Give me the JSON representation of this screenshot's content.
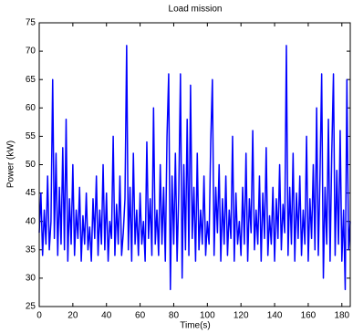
{
  "chart_data": {
    "type": "line",
    "title": "Load mission",
    "xlabel": "Time(s)",
    "ylabel": "Power (kW)",
    "x": [
      0,
      1,
      2,
      3,
      4,
      5,
      6,
      7,
      8,
      9,
      10,
      11,
      12,
      13,
      14,
      15,
      16,
      17,
      18,
      19,
      20,
      21,
      22,
      23,
      24,
      25,
      26,
      27,
      28,
      29,
      30,
      31,
      32,
      33,
      34,
      35,
      36,
      37,
      38,
      39,
      40,
      41,
      42,
      43,
      44,
      45,
      46,
      47,
      48,
      49,
      50,
      51,
      52,
      53,
      54,
      55,
      56,
      57,
      58,
      59,
      60,
      61,
      62,
      63,
      64,
      65,
      66,
      67,
      68,
      69,
      70,
      71,
      72,
      73,
      74,
      75,
      76,
      77,
      78,
      79,
      80,
      81,
      82,
      83,
      84,
      85,
      86,
      87,
      88,
      89,
      90,
      91,
      92,
      93,
      94,
      95,
      96,
      97,
      98,
      99,
      100,
      101,
      102,
      103,
      104,
      105,
      106,
      107,
      108,
      109,
      110,
      111,
      112,
      113,
      114,
      115,
      116,
      117,
      118,
      119,
      120,
      121,
      122,
      123,
      124,
      125,
      126,
      127,
      128,
      129,
      130,
      131,
      132,
      133,
      134,
      135,
      136,
      137,
      138,
      139,
      140,
      141,
      142,
      143,
      144,
      145,
      146,
      147,
      148,
      149,
      150,
      151,
      152,
      153,
      154,
      155,
      156,
      157,
      158,
      159,
      160,
      161,
      162,
      163,
      164,
      165,
      166,
      167,
      168,
      169,
      170,
      171,
      172,
      173,
      174,
      175,
      176,
      177,
      178,
      179,
      180,
      181,
      182,
      183,
      184,
      185
    ],
    "series": [
      {
        "name": "Power",
        "color": "#0000ff",
        "values": [
          38,
          45,
          34,
          42,
          36,
          48,
          35,
          40,
          65,
          37,
          52,
          34,
          46,
          36,
          53,
          35,
          58,
          33,
          44,
          36,
          50,
          34,
          42,
          37,
          46,
          33,
          41,
          36,
          45,
          35,
          39,
          33,
          44,
          37,
          48,
          34,
          42,
          36,
          50,
          35,
          45,
          33,
          40,
          37,
          55,
          34,
          43,
          36,
          48,
          34,
          38,
          44,
          71,
          35,
          46,
          33,
          52,
          36,
          42,
          34,
          45,
          36,
          40,
          33,
          54,
          37,
          44,
          34,
          60,
          36,
          42,
          34,
          50,
          36,
          46,
          33,
          55,
          66,
          28,
          48,
          36,
          52,
          33,
          45,
          66,
          30,
          50,
          35,
          58,
          34,
          64,
          37,
          46,
          33,
          52,
          35,
          42,
          36,
          48,
          34,
          40,
          36,
          54,
          65,
          34,
          46,
          38,
          50,
          33,
          44,
          36,
          48,
          34,
          42,
          37,
          55,
          33,
          45,
          36,
          40,
          34,
          46,
          36,
          52,
          33,
          44,
          38,
          56,
          35,
          42,
          36,
          48,
          33,
          45,
          37,
          53,
          34,
          41,
          36,
          46,
          33,
          44,
          37,
          50,
          35,
          43,
          38,
          71,
          34,
          46,
          36,
          52,
          33,
          45,
          37,
          48,
          34,
          42,
          36,
          55,
          33,
          44,
          37,
          50,
          35,
          60,
          34,
          48,
          66,
          30,
          46,
          36,
          58,
          33,
          52,
          66,
          34,
          49,
          36,
          56,
          33,
          42,
          28,
          65,
          35,
          40
        ]
      }
    ],
    "xlim": [
      0,
      185
    ],
    "ylim": [
      25,
      75
    ],
    "xticks": [
      0,
      20,
      40,
      60,
      80,
      100,
      120,
      140,
      160,
      180
    ],
    "yticks": [
      25,
      30,
      35,
      40,
      45,
      50,
      55,
      60,
      65,
      70,
      75
    ]
  }
}
